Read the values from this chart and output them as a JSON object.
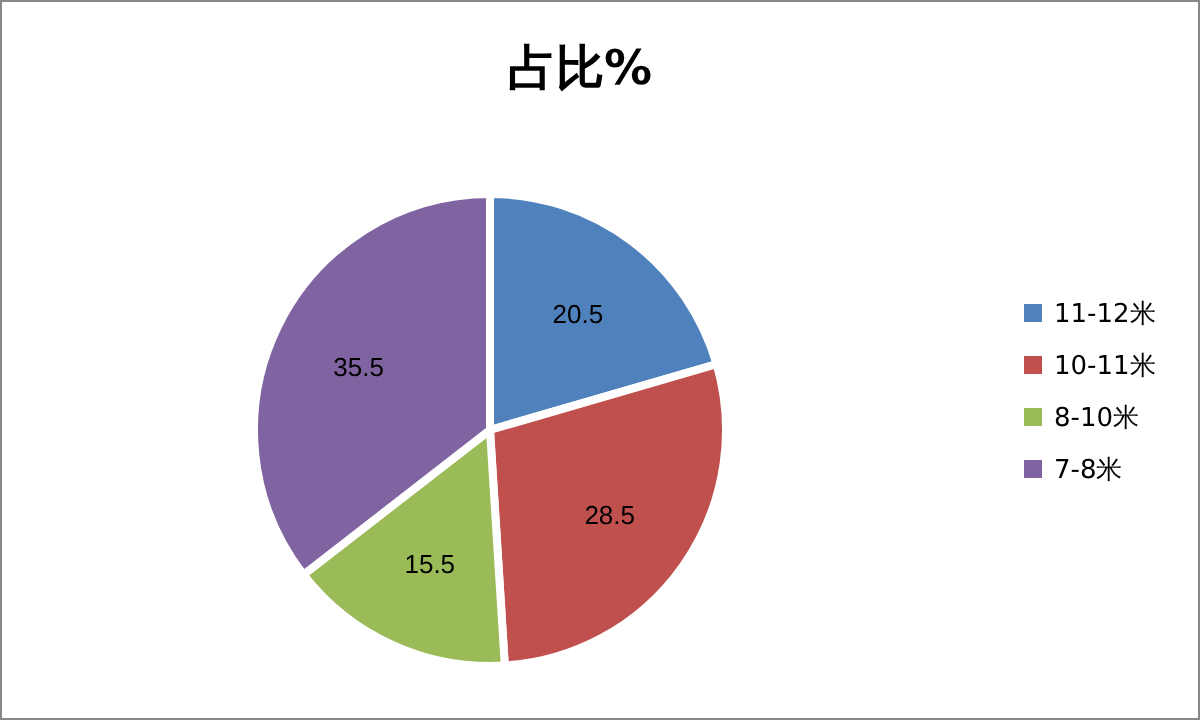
{
  "chart_data": {
    "type": "pie",
    "title": "占比%",
    "categories": [
      "11-12米",
      "10-11米",
      "8-10米",
      "7-8米"
    ],
    "values": [
      20.5,
      28.5,
      15.5,
      35.5
    ],
    "colors": [
      "#4f81bd",
      "#c0504d",
      "#9bbb59",
      "#8064a2"
    ],
    "data_labels": true,
    "legend": "right"
  }
}
